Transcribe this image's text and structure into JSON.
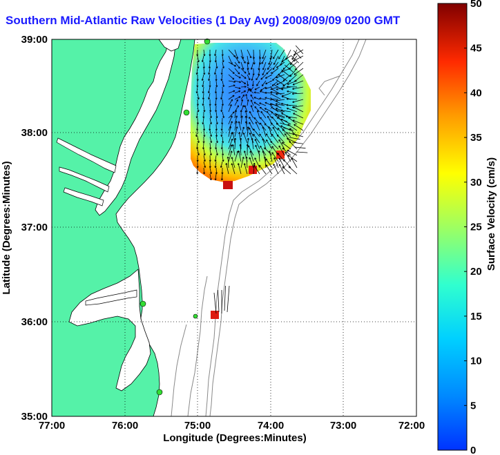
{
  "title": "Southern Mid-Atlantic Raw Velocities (1 Day Avg) 2008/09/09 0200 GMT",
  "xlabel": "Longitude (Degrees:Minutes)",
  "ylabel": "Latitude (Degrees:Minutes)",
  "colorbar_label": "Surface Velocity (cm/s)",
  "x_ticks": [
    "77:00",
    "76:00",
    "75:00",
    "74:00",
    "73:00",
    "72:00"
  ],
  "y_ticks": [
    "39:00",
    "38:00",
    "37:00",
    "36:00",
    "35:00"
  ],
  "colorbar_ticks": [
    "0",
    "5",
    "10",
    "15",
    "20",
    "25",
    "30",
    "35",
    "40",
    "45",
    "50"
  ],
  "colors": {
    "land": "#55f2a8",
    "ocean": "#ffffff",
    "title": "#1a1aff",
    "station": "#33dd33"
  },
  "colorbar_range": [
    0,
    50
  ],
  "x_range": [
    "77:00",
    "72:00"
  ],
  "y_range": [
    "35:00",
    "39:00"
  ],
  "grid": "dotted"
}
